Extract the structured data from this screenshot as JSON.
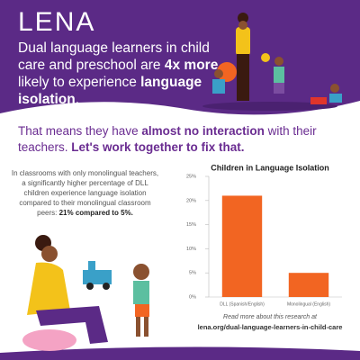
{
  "logo": "LENA",
  "headline": [
    "Dual language learners in child care and preschool are ",
    "4x more",
    " likely to experience ",
    "language isolation",
    "."
  ],
  "subheading": [
    "That means they have ",
    "almost no interaction",
    " with their teachers. ",
    "Let's work together to fix that."
  ],
  "paragraph": [
    "In classrooms with only monolingual teachers, a significantly higher percentage of DLL children experience language isolation compared to their monolingual classroom peers: ",
    "21% compared to 5%."
  ],
  "chart_data": {
    "type": "bar",
    "title": "Children in Language Isolation",
    "categories": [
      "DLL (Spanish/English)",
      "Monolingual (English)"
    ],
    "values": [
      21,
      5
    ],
    "color": "#f26522",
    "ylim": [
      0,
      25
    ],
    "yticks": [
      {
        "value": 0,
        "label": "0%"
      },
      {
        "value": 5,
        "label": "5%"
      },
      {
        "value": 10,
        "label": "10%"
      },
      {
        "value": 15,
        "label": "15%"
      },
      {
        "value": 20,
        "label": "20%"
      },
      {
        "value": 25,
        "label": "25%"
      }
    ]
  },
  "footer": {
    "note": "Read more about this research at",
    "link": "lena.org/dual-language-learners-in-child-care"
  }
}
